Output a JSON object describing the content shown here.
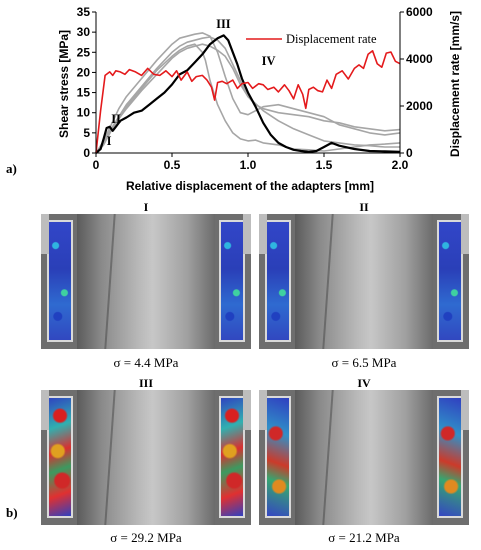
{
  "chart_data": {
    "type": "line",
    "xlabel": "Relative displacement of the adapters [mm]",
    "ylabel_left": "Shear stress [MPa]",
    "ylabel_right": "Displacement rate [mm/s]",
    "xlim": [
      0,
      2.0
    ],
    "ylim_left": [
      0,
      35
    ],
    "ylim_right": [
      0,
      6000
    ],
    "x_ticks": [
      "0",
      "0.5",
      "1.0",
      "1.5",
      "2.0"
    ],
    "y_left_ticks": [
      "0",
      "5",
      "10",
      "15",
      "20",
      "25",
      "30",
      "35"
    ],
    "y_right_ticks": [
      "0",
      "2000",
      "4000",
      "6000"
    ],
    "legend": {
      "entries": [
        "Displacement  rate"
      ],
      "placement": "top-right"
    },
    "annotations": [
      {
        "text": "I",
        "x": 0.07,
        "y": 2.0
      },
      {
        "text": "II",
        "x": 0.1,
        "y": 7.5
      },
      {
        "text": "III",
        "x": 0.79,
        "y": 31.0
      },
      {
        "text": "IV",
        "x": 1.09,
        "y": 21.8
      }
    ],
    "series": [
      {
        "name": "Displacement  rate",
        "axis": "right",
        "color": "#e41a1c",
        "x": [
          0,
          0.03,
          0.06,
          0.09,
          0.11,
          0.13,
          0.16,
          0.19,
          0.22,
          0.26,
          0.3,
          0.34,
          0.38,
          0.42,
          0.46,
          0.5,
          0.53,
          0.56,
          0.6,
          0.63,
          0.66,
          0.7,
          0.73,
          0.76,
          0.78,
          0.8,
          0.83,
          0.86,
          0.9,
          0.93,
          0.96,
          1.0,
          1.03,
          1.07,
          1.1,
          1.13,
          1.17,
          1.2,
          1.24,
          1.27,
          1.3,
          1.33,
          1.36,
          1.38,
          1.4,
          1.43,
          1.46,
          1.49,
          1.52,
          1.55,
          1.58,
          1.62,
          1.66,
          1.7,
          1.73,
          1.76,
          1.79,
          1.82,
          1.85,
          1.88,
          1.91,
          1.94,
          1.97,
          2.0
        ],
        "y": [
          0,
          1800,
          3300,
          3450,
          3300,
          3500,
          3450,
          3350,
          3550,
          3450,
          3300,
          3600,
          3350,
          3300,
          3500,
          3250,
          3500,
          3100,
          3450,
          3050,
          3250,
          3300,
          3100,
          2800,
          2250,
          3000,
          3050,
          2950,
          3100,
          2750,
          2950,
          3000,
          2750,
          2950,
          2900,
          2700,
          2800,
          2600,
          2900,
          2650,
          2300,
          2900,
          2500,
          1900,
          2700,
          2800,
          2650,
          2600,
          3100,
          2750,
          3350,
          3500,
          3150,
          3600,
          3750,
          3600,
          4200,
          4350,
          3800,
          3650,
          4250,
          4300,
          3900,
          3800
        ]
      },
      {
        "name": "",
        "axis": "left",
        "color": "#000000",
        "x": [
          0,
          0.03,
          0.05,
          0.07,
          0.09,
          0.11,
          0.13,
          0.16,
          0.2,
          0.25,
          0.3,
          0.35,
          0.4,
          0.45,
          0.5,
          0.55,
          0.6,
          0.65,
          0.7,
          0.75,
          0.8,
          0.84,
          0.87,
          0.9,
          0.93,
          0.96,
          1.0,
          1.05,
          1.1,
          1.15,
          1.2,
          1.25,
          1.3,
          1.35,
          1.4,
          1.45,
          1.5,
          1.55,
          1.6,
          1.7,
          1.8,
          1.9,
          2.0
        ],
        "y": [
          0,
          1.0,
          3.5,
          6.2,
          6.5,
          5.5,
          6.5,
          8.0,
          8.8,
          10.0,
          10.5,
          12.0,
          13.5,
          15.0,
          17.0,
          19.5,
          20.5,
          22.5,
          24.5,
          27.0,
          28.5,
          29.2,
          28.0,
          25.0,
          22.0,
          18.5,
          15.0,
          11.5,
          7.5,
          4.5,
          2.5,
          1.5,
          0.8,
          0.5,
          0.3,
          0.5,
          1.5,
          2.5,
          1.8,
          1.0,
          0.5,
          0.4,
          0.3
        ]
      },
      {
        "name": "",
        "axis": "left",
        "color": "#a6a6a6",
        "x": [
          0,
          0.05,
          0.1,
          0.15,
          0.2,
          0.3,
          0.4,
          0.5,
          0.55,
          0.6,
          0.65,
          0.7,
          0.75,
          0.8,
          0.85,
          0.9,
          0.95,
          1.0,
          1.05,
          1.1,
          1.2,
          1.3,
          1.4,
          1.5,
          1.6,
          1.7,
          1.8,
          1.9,
          2.0
        ],
        "y": [
          0,
          3.0,
          7.0,
          11.0,
          14.0,
          18.5,
          23.0,
          27.0,
          28.5,
          29.0,
          29.5,
          29.8,
          29.0,
          25.0,
          19.0,
          13.5,
          10.0,
          9.5,
          10.5,
          11.5,
          12.0,
          11.0,
          10.0,
          9.0,
          7.0,
          6.0,
          5.0,
          4.5,
          5.0
        ]
      },
      {
        "name": "",
        "axis": "left",
        "color": "#a6a6a6",
        "x": [
          0,
          0.05,
          0.1,
          0.2,
          0.3,
          0.4,
          0.5,
          0.55,
          0.6,
          0.65,
          0.7,
          0.75,
          0.8,
          0.85,
          0.9,
          0.95,
          1.0,
          1.05,
          1.1,
          1.2,
          1.3,
          1.4,
          1.5,
          1.6,
          1.7,
          1.8,
          1.9,
          2.0
        ],
        "y": [
          0,
          2.5,
          6.0,
          12.0,
          16.5,
          21.0,
          25.0,
          26.5,
          27.5,
          28.0,
          28.5,
          28.8,
          28.0,
          26.0,
          22.0,
          18.0,
          14.0,
          12.0,
          11.0,
          10.0,
          9.5,
          9.0,
          8.0,
          7.5,
          6.5,
          6.0,
          5.5,
          5.8
        ]
      },
      {
        "name": "",
        "axis": "left",
        "color": "#a6a6a6",
        "x": [
          0,
          0.05,
          0.1,
          0.2,
          0.3,
          0.4,
          0.5,
          0.55,
          0.6,
          0.65,
          0.7,
          0.72,
          0.75,
          0.8,
          0.85,
          0.9,
          0.95,
          1.0,
          1.05,
          1.1,
          1.2,
          1.3,
          1.4,
          1.5,
          1.6,
          1.7,
          1.8,
          1.9,
          2.0
        ],
        "y": [
          0,
          2.0,
          5.5,
          11.5,
          16.0,
          20.5,
          24.0,
          25.5,
          26.5,
          27.0,
          25.0,
          23.0,
          18.0,
          12.0,
          8.0,
          5.0,
          3.5,
          3.0,
          3.2,
          2.5,
          2.0,
          1.0,
          0.8,
          0.5,
          1.0,
          1.5,
          2.0,
          2.2,
          2.5
        ]
      },
      {
        "name": "",
        "axis": "left",
        "color": "#a6a6a6",
        "x": [
          0,
          0.05,
          0.1,
          0.2,
          0.3,
          0.4,
          0.5,
          0.55,
          0.6,
          0.65,
          0.7,
          0.75,
          0.8,
          0.85,
          0.9,
          0.95,
          1.0,
          1.1,
          1.2,
          1.3,
          1.4,
          1.5,
          1.6,
          1.7,
          1.8,
          1.9,
          2.0
        ],
        "y": [
          0,
          2.2,
          6.0,
          11.0,
          15.5,
          19.5,
          23.5,
          25.0,
          26.0,
          26.5,
          27.0,
          26.5,
          25.5,
          24.0,
          21.0,
          17.0,
          14.0,
          10.5,
          8.0,
          6.0,
          4.5,
          3.0,
          2.5,
          2.0,
          1.8,
          1.5,
          1.5
        ]
      }
    ]
  },
  "figure": {
    "label_a": "a)",
    "label_b": "b)",
    "panels": [
      {
        "title": "I",
        "caption": "σ = 4.4 MPa"
      },
      {
        "title": "II",
        "caption": "σ = 6.5 MPa"
      },
      {
        "title": "III",
        "caption": "σ = 29.2 MPa"
      },
      {
        "title": "IV",
        "caption": "σ = 21.2 MPa"
      }
    ]
  }
}
